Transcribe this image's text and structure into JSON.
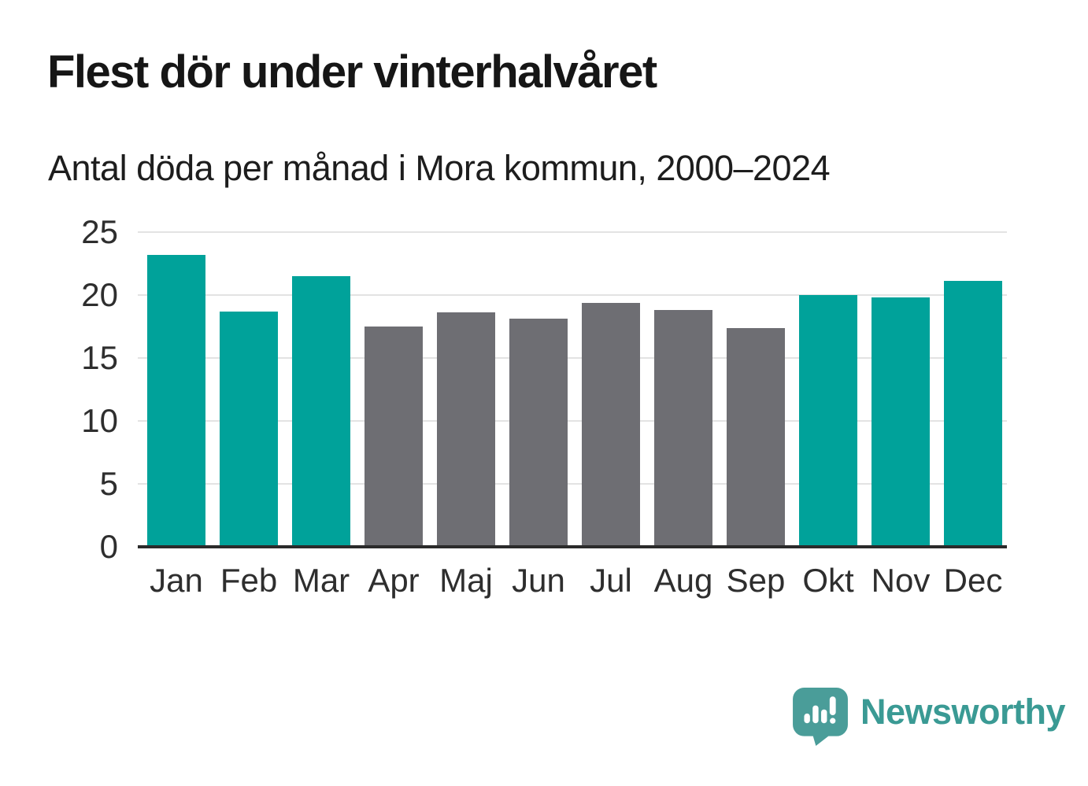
{
  "header": {
    "title": "Flest dör under vinterhalvåret",
    "subtitle": "Antal döda per månad i Mora kommun, 2000–2024"
  },
  "chart_data": {
    "type": "bar",
    "title": "Flest dör under vinterhalvåret",
    "subtitle": "Antal döda per månad i Mora kommun, 2000–2024",
    "categories": [
      "Jan",
      "Feb",
      "Mar",
      "Apr",
      "Maj",
      "Jun",
      "Jul",
      "Aug",
      "Sep",
      "Okt",
      "Nov",
      "Dec"
    ],
    "values": [
      23.2,
      18.7,
      21.5,
      17.5,
      18.6,
      18.1,
      19.4,
      18.8,
      17.4,
      20.0,
      19.8,
      21.1
    ],
    "bar_groups": [
      "winter",
      "winter",
      "winter",
      "summer",
      "summer",
      "summer",
      "summer",
      "summer",
      "summer",
      "winter",
      "winter",
      "winter"
    ],
    "colors": {
      "winter": "#00a29a",
      "summer": "#6e6e73",
      "gridline": "#e3e3e3",
      "axis": "#2b2b2b",
      "tick_text": "#2e2e2e"
    },
    "xlabel": "",
    "ylabel": "",
    "ylim": [
      0,
      25
    ],
    "yticks": [
      0,
      5,
      10,
      15,
      20,
      25
    ],
    "grid": true,
    "legend": false
  },
  "footer": {
    "brand": "Newsworthy",
    "brand_color": "#3a9a94",
    "logo_icon": "speech-bubble-bar-chart",
    "logo_bubble_color": "#4a9d99"
  }
}
